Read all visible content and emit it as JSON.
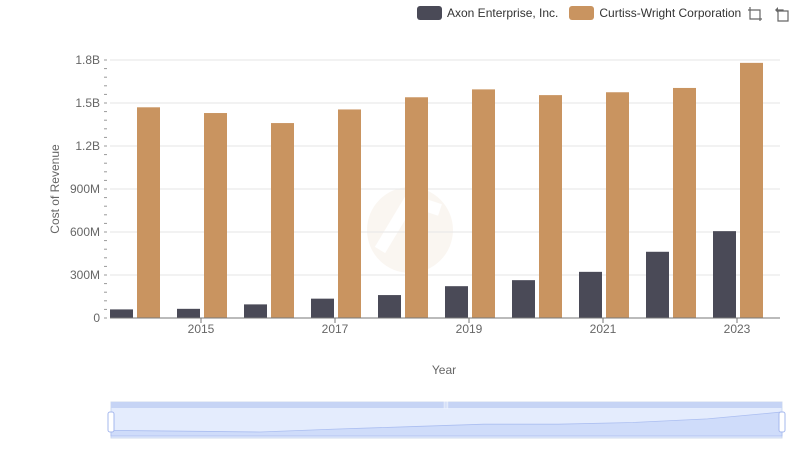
{
  "legend": {
    "items": [
      {
        "label": "Axon Enterprise, Inc.",
        "color": "#4a4a57"
      },
      {
        "label": "Curtiss-Wright Corporation",
        "color": "#c99460"
      }
    ]
  },
  "toolbox": {
    "icons": [
      "zoom-icon",
      "restore-icon"
    ]
  },
  "chart_data": {
    "type": "bar",
    "xlabel": "Year",
    "ylabel": "Cost of Revenue",
    "categories": [
      "2014",
      "2015",
      "2016",
      "2017",
      "2018",
      "2019",
      "2020",
      "2021",
      "2022",
      "2023"
    ],
    "x_tick_labels": [
      "2015",
      "2017",
      "2019",
      "2021",
      "2023"
    ],
    "y_tick_labels": [
      "0",
      "300M",
      "600M",
      "900M",
      "1.2B",
      "1.5B",
      "1.8B"
    ],
    "ylim": [
      0,
      1800000000
    ],
    "grid": true,
    "legend_position": "top-right",
    "series": [
      {
        "name": "Axon Enterprise, Inc.",
        "color": "#4a4a57",
        "values": [
          60000000,
          64000000,
          95000000,
          135000000,
          160000000,
          222000000,
          264000000,
          322000000,
          462000000,
          606000000
        ]
      },
      {
        "name": "Curtiss-Wright Corporation",
        "color": "#c99460",
        "values": [
          1470000000,
          1430000000,
          1360000000,
          1455000000,
          1540000000,
          1595000000,
          1555000000,
          1575000000,
          1605000000,
          1780000000
        ]
      }
    ]
  }
}
